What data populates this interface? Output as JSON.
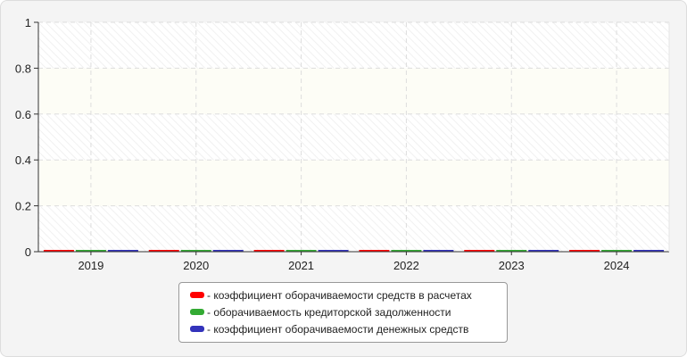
{
  "chart_data": {
    "type": "bar",
    "categories": [
      "2019",
      "2020",
      "2021",
      "2022",
      "2023",
      "2024"
    ],
    "ylim": [
      0,
      1
    ],
    "yticks": [
      "0",
      "0.2",
      "0.4",
      "0.6",
      "0.8",
      "1"
    ],
    "grid": true,
    "legend_placement": "bottom",
    "series": [
      {
        "name": "- коэффициент оборачиваемости средств в расчетах",
        "color": "#ff0000",
        "values": [
          0,
          0,
          0,
          0,
          0,
          0
        ]
      },
      {
        "name": "- оборачиваемость кредиторской задолженности",
        "color": "#33aa33",
        "values": [
          0,
          0,
          0,
          0,
          0,
          0
        ]
      },
      {
        "name": "- коэффициент оборачиваемости денежных средств",
        "color": "#3333bb",
        "values": [
          0,
          0,
          0,
          0,
          0,
          0
        ]
      }
    ]
  }
}
